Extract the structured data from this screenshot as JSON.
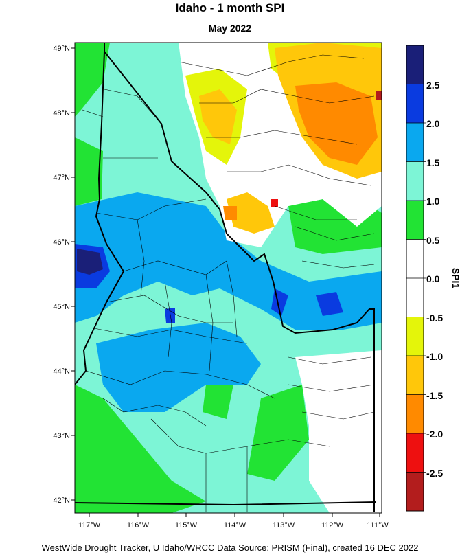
{
  "title": "Idaho - 1 month SPI",
  "subtitle": "May 2022",
  "footer": "WestWide Drought Tracker, U Idaho/WRCC Data Source: PRISM (Final), created 16 DEC 2022",
  "map": {
    "lat_labels": [
      "49°N",
      "48°N",
      "47°N",
      "46°N",
      "45°N",
      "44°N",
      "43°N",
      "42°N"
    ],
    "lon_labels": [
      "117°W",
      "116°W",
      "115°W",
      "114°W",
      "113°W",
      "112°W",
      "111°W"
    ]
  },
  "colorbar": {
    "title": "SPI1",
    "labels": [
      "2.5",
      "2.0",
      "1.5",
      "1.0",
      "0.5",
      "0.0",
      "-0.5",
      "-1.0",
      "-1.5",
      "-2.0",
      "-2.5"
    ],
    "colors": [
      "#1a1f78",
      "#0a3be0",
      "#0aa8ef",
      "#7df5d6",
      "#22e334",
      "#ffffff",
      "#ffffff",
      "#e4f50a",
      "#ffc70a",
      "#ff8a00",
      "#ee1010",
      "#b31d1d"
    ]
  }
}
